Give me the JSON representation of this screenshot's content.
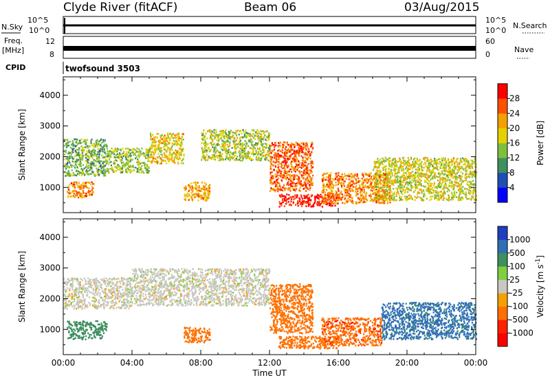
{
  "header": {
    "station": "Clyde River (fitACF)",
    "beam": "Beam 06",
    "date": "03/Aug/2015"
  },
  "status_panels": {
    "nsky_label": "N.Sky",
    "nsearch_label": "N.Search",
    "noise_ticks": [
      "10^5",
      "10^0"
    ],
    "freq_label_top": "Freq.",
    "freq_label_bot": "[MHz]",
    "freq_ticks": [
      "12",
      "8"
    ],
    "nave_label": "Nave",
    "nave_ticks": [
      "60",
      "0"
    ],
    "cpid_label": "CPID",
    "cpid_value": "twofsound 3503"
  },
  "chart_data": [
    {
      "type": "heatmap",
      "quantity": "Power",
      "ylabel": "Slant Range [km]",
      "xlabel": "Time UT",
      "x_ticks": [
        "00:00",
        "04:00",
        "08:00",
        "12:00",
        "16:00",
        "20:00",
        "00:00"
      ],
      "x_range_hours": [
        0,
        24
      ],
      "y_ticks": [
        1000,
        2000,
        3000,
        4000
      ],
      "y_range_km": [
        180,
        4600
      ],
      "colorbar": {
        "label": "Power [dB]",
        "ticks": [
          "4",
          "8",
          "12",
          "16",
          "20",
          "24",
          "28"
        ],
        "range": [
          0,
          30
        ],
        "colors": [
          "#0000ff",
          "#1f4fb5",
          "#3f8f5f",
          "#7fbf3f",
          "#e5d000",
          "#f5a000",
          "#ff5000",
          "#ff0000"
        ]
      },
      "scatter_regions": [
        {
          "t": [
            0.0,
            2.5
          ],
          "range_km": [
            1400,
            2600
          ],
          "value": 12
        },
        {
          "t": [
            0.2,
            1.8
          ],
          "range_km": [
            700,
            1200
          ],
          "value": 22
        },
        {
          "t": [
            2.5,
            5.0
          ],
          "range_km": [
            1500,
            2300
          ],
          "value": 14
        },
        {
          "t": [
            5.0,
            7.0
          ],
          "range_km": [
            1800,
            2800
          ],
          "value": 18
        },
        {
          "t": [
            7.0,
            8.5
          ],
          "range_km": [
            600,
            1200
          ],
          "value": 20
        },
        {
          "t": [
            8.0,
            12.0
          ],
          "range_km": [
            1900,
            2900
          ],
          "value": 15
        },
        {
          "t": [
            12.0,
            14.5
          ],
          "range_km": [
            900,
            2500
          ],
          "value": 24
        },
        {
          "t": [
            12.5,
            16.0
          ],
          "range_km": [
            400,
            800
          ],
          "value": 28
        },
        {
          "t": [
            15.0,
            19.0
          ],
          "range_km": [
            500,
            1500
          ],
          "value": 22
        },
        {
          "t": [
            18.0,
            24.0
          ],
          "range_km": [
            600,
            2000
          ],
          "value": 16
        }
      ]
    },
    {
      "type": "heatmap",
      "quantity": "Velocity",
      "ylabel": "Slant Range [km]",
      "xlabel": "Time UT",
      "x_ticks": [
        "00:00",
        "04:00",
        "08:00",
        "12:00",
        "16:00",
        "20:00",
        "00:00"
      ],
      "x_range_hours": [
        0,
        24
      ],
      "y_ticks": [
        1000,
        2000,
        3000,
        4000
      ],
      "y_range_km": [
        180,
        4600
      ],
      "colorbar": {
        "label": "Velocity [m s",
        "label_sup": "-1",
        "label_end": "]",
        "ticks": [
          "1000",
          "500",
          "100",
          "25",
          "-25",
          "-100",
          "-500",
          "-1000"
        ],
        "colors": [
          "#1f3fbf",
          "#2f6fb5",
          "#3f8f5f",
          "#7fcf3f",
          "#c8c8c0",
          "#f5a000",
          "#ff7000",
          "#ff2000",
          "#ff0000"
        ]
      },
      "scatter_regions": [
        {
          "t": [
            0.0,
            4.0
          ],
          "range_km": [
            1700,
            2700
          ],
          "value": 0
        },
        {
          "t": [
            0.2,
            2.5
          ],
          "range_km": [
            700,
            1300
          ],
          "value": 300
        },
        {
          "t": [
            4.0,
            12.0
          ],
          "range_km": [
            1800,
            3000
          ],
          "value": 0
        },
        {
          "t": [
            7.0,
            8.5
          ],
          "range_km": [
            600,
            1100
          ],
          "value": -200
        },
        {
          "t": [
            12.0,
            14.5
          ],
          "range_km": [
            900,
            2500
          ],
          "value": -300
        },
        {
          "t": [
            12.5,
            16.0
          ],
          "range_km": [
            400,
            800
          ],
          "value": -200
        },
        {
          "t": [
            15.0,
            18.5
          ],
          "range_km": [
            500,
            1400
          ],
          "value": -400
        },
        {
          "t": [
            18.5,
            24.0
          ],
          "range_km": [
            700,
            1900
          ],
          "value": 700
        }
      ]
    }
  ]
}
